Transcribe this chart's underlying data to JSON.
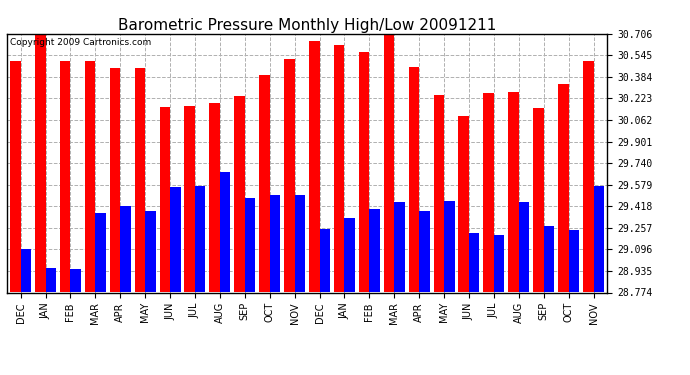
{
  "title": "Barometric Pressure Monthly High/Low 20091211",
  "copyright": "Copyright 2009 Cartronics.com",
  "categories": [
    "DEC",
    "JAN",
    "FEB",
    "MAR",
    "APR",
    "MAY",
    "JUN",
    "JUL",
    "AUG",
    "SEP",
    "OCT",
    "NOV",
    "DEC",
    "JAN",
    "FEB",
    "MAR",
    "APR",
    "MAY",
    "JUN",
    "JUL",
    "AUG",
    "SEP",
    "OCT",
    "NOV"
  ],
  "highs": [
    30.5,
    30.71,
    30.5,
    30.5,
    30.45,
    30.45,
    30.16,
    30.17,
    30.19,
    30.24,
    30.4,
    30.52,
    30.65,
    30.62,
    30.57,
    30.71,
    30.46,
    30.25,
    30.09,
    30.26,
    30.27,
    30.15,
    30.33,
    30.5
  ],
  "lows": [
    29.1,
    28.96,
    28.95,
    29.37,
    29.42,
    29.38,
    29.56,
    29.57,
    29.67,
    29.48,
    29.5,
    29.5,
    29.25,
    29.33,
    29.4,
    29.45,
    29.38,
    29.46,
    29.22,
    29.2,
    29.45,
    29.27,
    29.24,
    29.57
  ],
  "bar_color_high": "#ff0000",
  "bar_color_low": "#0000ff",
  "background_color": "#ffffff",
  "plot_bg_color": "#ffffff",
  "grid_color": "#b0b0b0",
  "yticks": [
    28.774,
    28.935,
    29.096,
    29.257,
    29.418,
    29.579,
    29.74,
    29.901,
    30.062,
    30.223,
    30.384,
    30.545,
    30.706
  ],
  "ymin": 28.774,
  "ymax": 30.706,
  "title_fontsize": 11,
  "tick_fontsize": 7,
  "copyright_fontsize": 6.5,
  "fig_width": 6.9,
  "fig_height": 3.75,
  "dpi": 100
}
